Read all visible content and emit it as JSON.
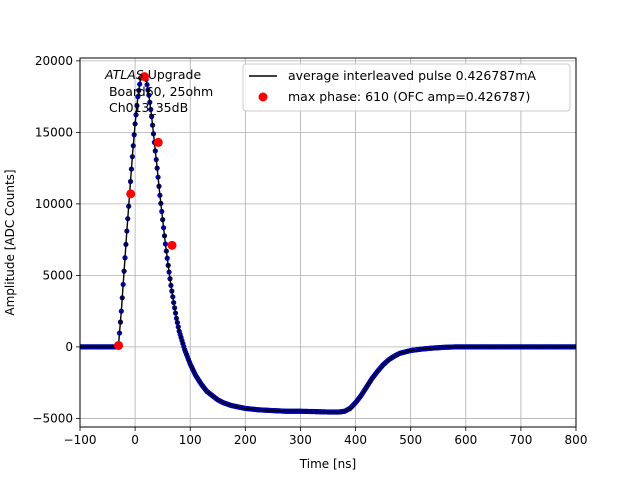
{
  "chart_data": {
    "type": "line",
    "title": "",
    "xlabel": "Time [ns]",
    "ylabel": "Amplitude [ADC Counts]",
    "xlim": [
      -100,
      800
    ],
    "ylim": [
      -5600,
      20200
    ],
    "xticks": [
      -100,
      0,
      100,
      200,
      300,
      400,
      500,
      600,
      700,
      800
    ],
    "xtick_labels": [
      "−100",
      "0",
      "100",
      "200",
      "300",
      "400",
      "500",
      "600",
      "700",
      "800"
    ],
    "yticks": [
      -5000,
      0,
      5000,
      10000,
      15000,
      20000
    ],
    "ytick_labels": [
      "−5000",
      "0",
      "5000",
      "10000",
      "15000",
      "20000"
    ],
    "grid": true,
    "legend_position": "top-right",
    "annotation": {
      "line1_italic": "ATLAS",
      "line1_rest": " Upgrade",
      "line2": " Board60, 25ohm",
      "line3": " Ch013_35dB"
    },
    "series": [
      {
        "name": "average interleaved pulse 0.426787mA",
        "style": "line-with-dots",
        "line_color": "#000000",
        "marker_colors": [
          "#00008b",
          "#0000cd"
        ],
        "x": [
          -100,
          -40,
          -35,
          -30,
          -25,
          -20,
          -15,
          -10,
          -5,
          0,
          5,
          10,
          15,
          20,
          25,
          30,
          35,
          40,
          45,
          50,
          55,
          60,
          65,
          70,
          75,
          80,
          90,
          100,
          110,
          120,
          130,
          140,
          150,
          160,
          175,
          200,
          225,
          250,
          275,
          300,
          325,
          350,
          370,
          380,
          390,
          400,
          410,
          420,
          430,
          440,
          450,
          460,
          470,
          480,
          500,
          520,
          540,
          560,
          580,
          600,
          650,
          700,
          750,
          800
        ],
        "y": [
          0,
          0,
          0,
          200,
          2500,
          5300,
          8100,
          10700,
          13300,
          15600,
          17500,
          18800,
          19000,
          18700,
          17600,
          16100,
          14300,
          12500,
          10600,
          8900,
          7200,
          5700,
          4300,
          3100,
          2000,
          1100,
          -200,
          -1200,
          -2000,
          -2600,
          -3100,
          -3400,
          -3700,
          -3900,
          -4100,
          -4300,
          -4400,
          -4450,
          -4500,
          -4500,
          -4520,
          -4550,
          -4550,
          -4500,
          -4300,
          -3900,
          -3400,
          -2800,
          -2200,
          -1700,
          -1250,
          -900,
          -650,
          -450,
          -250,
          -150,
          -80,
          -30,
          0,
          0,
          0,
          0,
          0,
          0
        ]
      },
      {
        "name": "max phase: 610 (OFC amp=0.426787)",
        "style": "markers",
        "color": "#ff0000",
        "x": [
          -30,
          -8,
          17,
          42,
          67
        ],
        "y": [
          100,
          10700,
          18900,
          14300,
          7100
        ]
      }
    ]
  }
}
